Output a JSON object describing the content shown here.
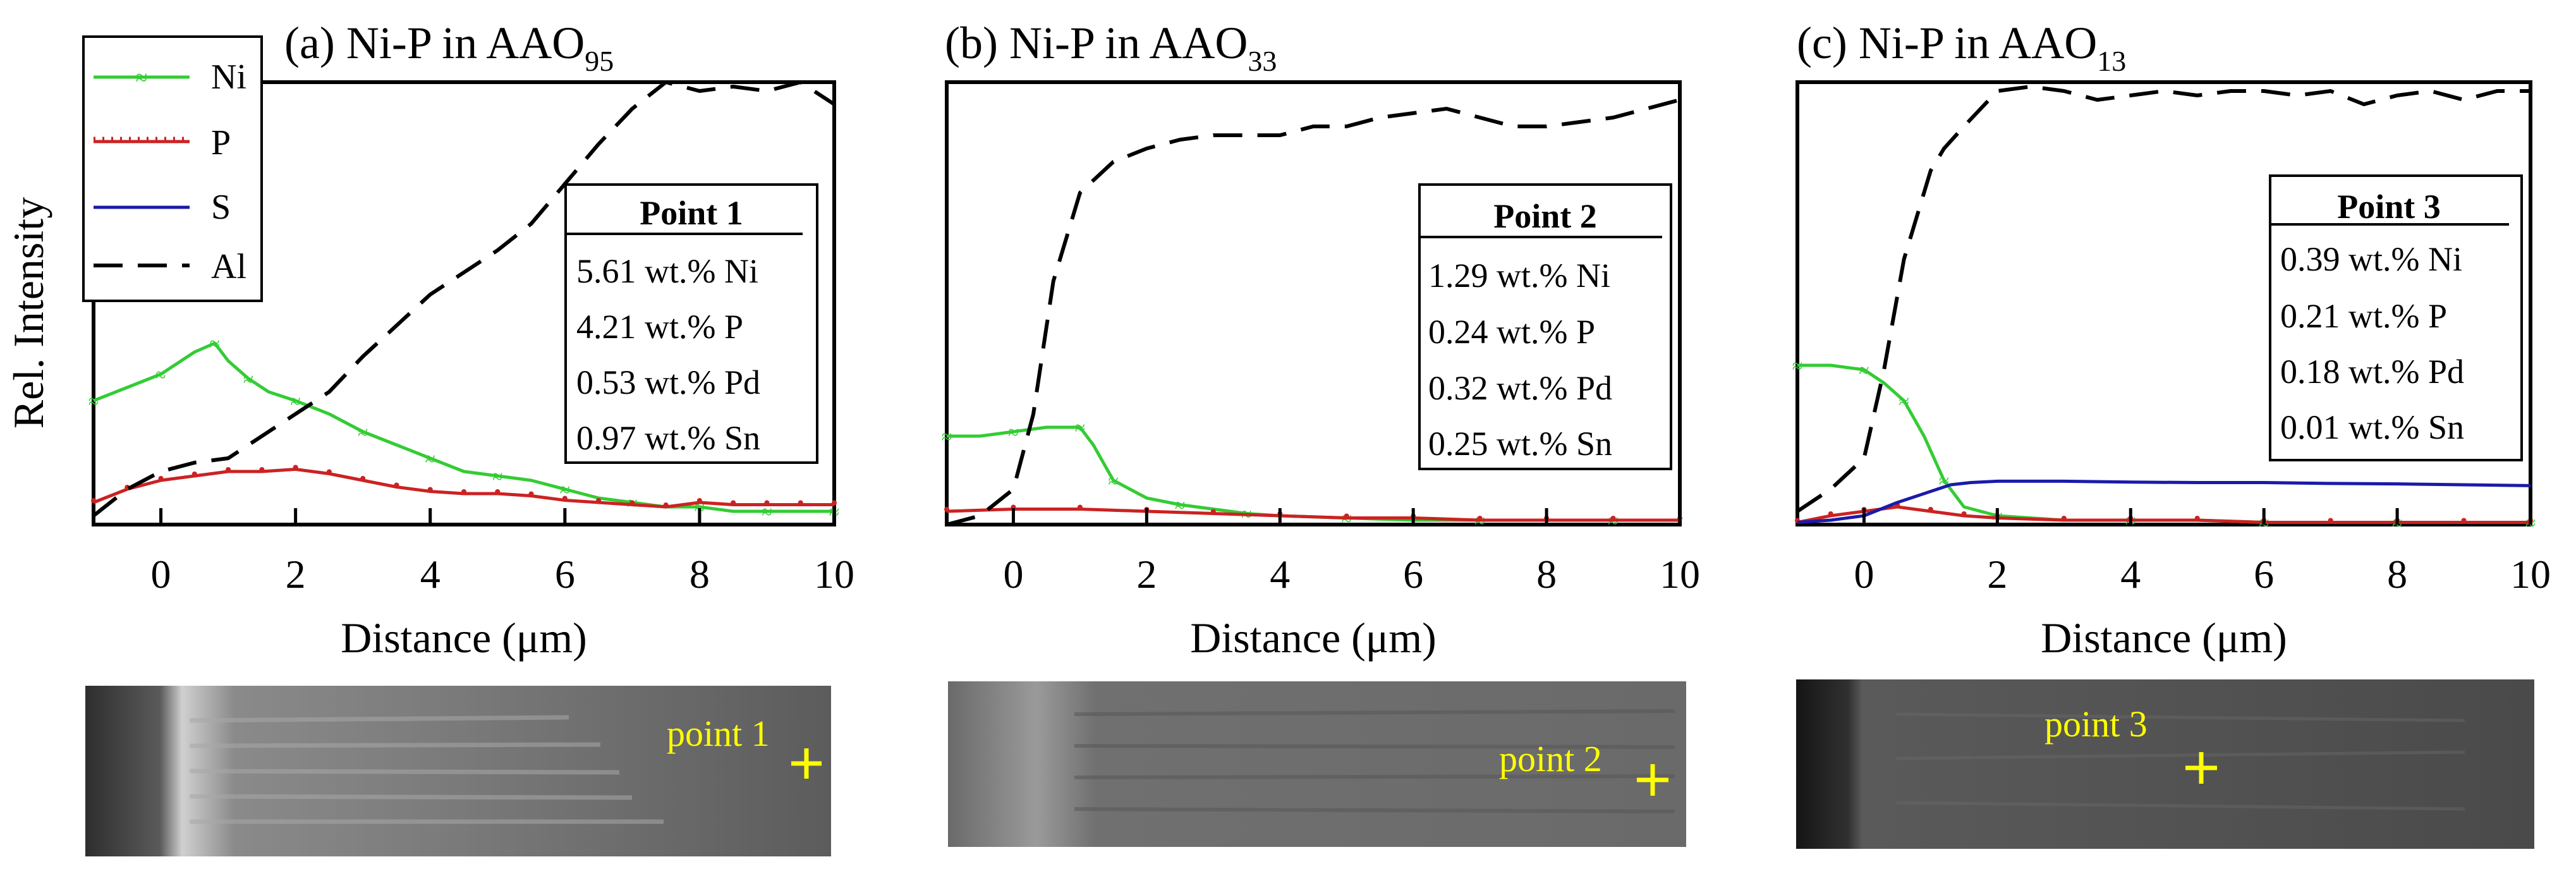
{
  "chart_data": [
    {
      "type": "line",
      "title": "(a) Ni-P in AAO",
      "title_sub": "95",
      "xlabel": "Distance (μm)",
      "ylabel": "Rel. Intensity",
      "xlim": [
        -1,
        10
      ],
      "ylim": [
        0,
        100
      ],
      "xticks": [
        0,
        2,
        4,
        6,
        8,
        10
      ],
      "xtick_labels": [
        "0",
        "2",
        "4",
        "6",
        "8",
        "10"
      ],
      "series": [
        {
          "name": "Ni",
          "x": [
            -1,
            -0.5,
            0,
            0.5,
            0.8,
            1,
            1.3,
            1.6,
            2,
            2.5,
            3,
            3.5,
            4,
            4.5,
            5,
            5.5,
            6,
            6.5,
            7,
            7.5,
            8,
            8.5,
            9,
            9.5,
            10
          ],
          "y": [
            28,
            31,
            34,
            39,
            41,
            37,
            33,
            30,
            28,
            25,
            21,
            18,
            15,
            12,
            11,
            10,
            8,
            6,
            5,
            4,
            4,
            3,
            3,
            3,
            3
          ]
        },
        {
          "name": "P",
          "x": [
            -1,
            -0.5,
            0,
            0.5,
            1,
            1.5,
            2,
            2.5,
            3,
            3.5,
            4,
            4.5,
            5,
            5.5,
            6,
            6.5,
            7,
            7.5,
            8,
            8.5,
            9,
            9.5,
            10
          ],
          "y": [
            5,
            8,
            10,
            11,
            12,
            12,
            12.5,
            11.5,
            10,
            8.5,
            7.5,
            7,
            7,
            6.5,
            5.5,
            5,
            4.5,
            4,
            5,
            4.5,
            4.5,
            4.5,
            4.5
          ]
        },
        {
          "name": "Al",
          "x": [
            -1,
            -0.5,
            0,
            0.5,
            1,
            1.5,
            2,
            2.5,
            3,
            3.5,
            4,
            4.5,
            5,
            5.5,
            6,
            6.5,
            7,
            7.5,
            8,
            8.5,
            9,
            9.5,
            10
          ],
          "y": [
            2,
            8,
            12,
            14,
            15,
            20,
            25,
            30,
            38,
            45,
            52,
            57,
            62,
            68,
            77,
            86,
            94,
            100,
            98,
            99,
            98,
            100,
            95
          ]
        }
      ],
      "info_box": {
        "title": "Point 1",
        "lines": [
          "5.61 wt.% Ni",
          "4.21 wt.% P",
          "0.53 wt.% Pd",
          "0.97 wt.% Sn"
        ]
      },
      "image_label": "point 1"
    },
    {
      "type": "line",
      "title": "(b) Ni-P in AAO",
      "title_sub": "33",
      "xlabel": "Distance (μm)",
      "ylabel": "",
      "xlim": [
        -1,
        10
      ],
      "ylim": [
        0,
        100
      ],
      "xticks": [
        0,
        2,
        4,
        6,
        8,
        10
      ],
      "xtick_labels": [
        "0",
        "2",
        "4",
        "6",
        "8",
        "10"
      ],
      "series": [
        {
          "name": "Ni",
          "x": [
            -1,
            -0.5,
            0,
            0.5,
            1,
            1.2,
            1.5,
            2,
            2.5,
            3,
            3.5,
            4,
            5,
            6,
            7,
            8,
            9,
            10
          ],
          "y": [
            20,
            20,
            21,
            22,
            22,
            18,
            10,
            6,
            4.5,
            3.5,
            2.5,
            2,
            1.5,
            1,
            1,
            1,
            1,
            1
          ]
        },
        {
          "name": "P",
          "x": [
            -1,
            0,
            1,
            2,
            3,
            4,
            5,
            6,
            7,
            8,
            9,
            10
          ],
          "y": [
            3,
            3.5,
            3.5,
            3,
            2.5,
            2,
            1.5,
            1.5,
            1,
            1,
            1,
            1
          ]
        },
        {
          "name": "Al",
          "x": [
            -1,
            -0.5,
            0,
            0.3,
            0.6,
            1,
            1.5,
            2,
            2.5,
            3,
            4,
            4.5,
            5,
            5.5,
            6,
            6.5,
            7,
            7.5,
            8,
            8.5,
            9,
            9.5,
            10
          ],
          "y": [
            0,
            2,
            8,
            25,
            55,
            75,
            82,
            85,
            87,
            88,
            88,
            90,
            90,
            92,
            93,
            94,
            92,
            90,
            90,
            91,
            92,
            94,
            96
          ]
        }
      ],
      "info_box": {
        "title": "Point 2",
        "lines": [
          "1.29 wt.% Ni",
          "0.24 wt.% P",
          "0.32 wt.% Pd",
          "0.25 wt.% Sn"
        ]
      },
      "image_label": "point 2"
    },
    {
      "type": "line",
      "title": "(c) Ni-P in AAO",
      "title_sub": "13",
      "xlabel": "Distance (μm)",
      "ylabel": "",
      "xlim": [
        -1,
        10
      ],
      "ylim": [
        0,
        100
      ],
      "xticks": [
        0,
        2,
        4,
        6,
        8,
        10
      ],
      "xtick_labels": [
        "0",
        "2",
        "4",
        "6",
        "8",
        "10"
      ],
      "series": [
        {
          "name": "Ni",
          "x": [
            -1,
            -0.5,
            0,
            0.3,
            0.6,
            0.9,
            1.2,
            1.5,
            2,
            3,
            4,
            5,
            6,
            7,
            8,
            9,
            10
          ],
          "y": [
            36,
            36,
            35,
            32,
            28,
            20,
            10,
            4,
            2,
            1,
            1,
            1,
            0.5,
            0.5,
            0.5,
            0.5,
            0.5
          ]
        },
        {
          "name": "P",
          "x": [
            -1,
            -0.5,
            0,
            0.5,
            1,
            1.5,
            2,
            3,
            4,
            5,
            6,
            7,
            8,
            9,
            10
          ],
          "y": [
            0.5,
            2,
            3,
            4,
            3,
            2,
            1.5,
            1,
            1,
            1,
            0.5,
            0.5,
            0.5,
            0.5,
            0.5
          ]
        },
        {
          "name": "S",
          "x": [
            -1,
            -0.5,
            0,
            0.5,
            1,
            1.3,
            1.6,
            2,
            3,
            4,
            5,
            6,
            7,
            8,
            9,
            10
          ],
          "y": [
            0.5,
            1,
            2,
            5,
            7.5,
            9,
            9.5,
            9.8,
            9.8,
            9.6,
            9.5,
            9.5,
            9.3,
            9.2,
            9,
            8.8
          ]
        },
        {
          "name": "Al",
          "x": [
            -1,
            -0.5,
            0,
            0.3,
            0.6,
            1,
            1.2,
            1.5,
            2,
            2.5,
            3,
            3.5,
            4,
            4.5,
            5,
            5.5,
            6,
            6.5,
            7,
            7.5,
            8,
            8.5,
            9,
            9.5,
            10
          ],
          "y": [
            3,
            8,
            15,
            35,
            60,
            80,
            85,
            90,
            98,
            99,
            98,
            96,
            97,
            98,
            97,
            98,
            98,
            97,
            98,
            95,
            97,
            98,
            96,
            98,
            98
          ]
        }
      ],
      "info_box": {
        "title": "Point 3",
        "lines": [
          "0.39 wt.% Ni",
          "0.21 wt.% P",
          "0.18 wt.% Pd",
          "0.01 wt.% Sn"
        ]
      },
      "image_label": "point 3"
    }
  ],
  "legend": [
    {
      "name": "Ni",
      "color": "#33cc33",
      "style": "marker-line"
    },
    {
      "name": "P",
      "color": "#cc2222",
      "style": "dotted-line"
    },
    {
      "name": "S",
      "color": "#1a1aaa",
      "style": "solid"
    },
    {
      "name": "Al",
      "color": "#000000",
      "style": "dashed"
    }
  ],
  "colors": {
    "Ni": "#33cc33",
    "P": "#cc2222",
    "S": "#1a1aaa",
    "Al": "#000000",
    "crosshair": "#ffff00"
  }
}
